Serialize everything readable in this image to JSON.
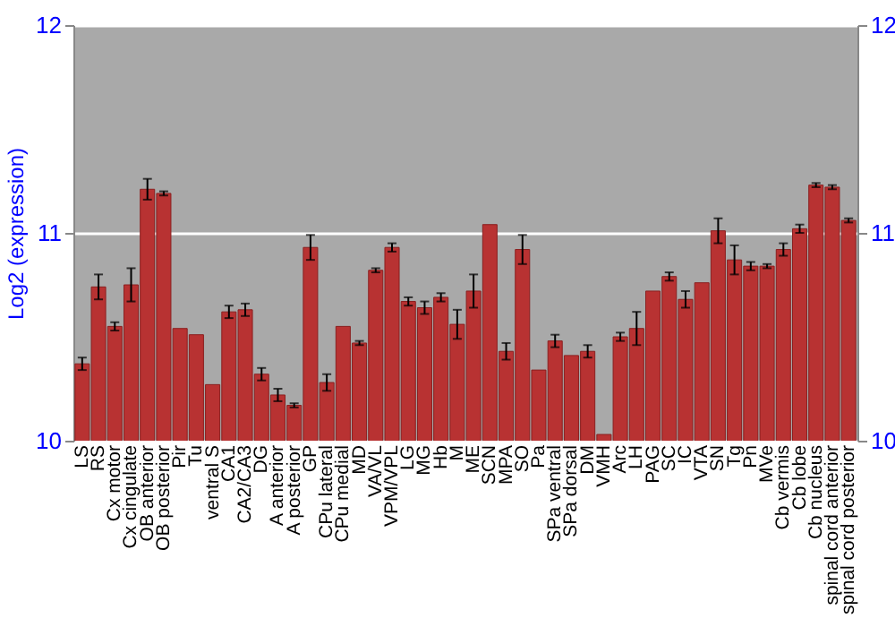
{
  "chart_data": {
    "type": "bar",
    "ylabel": "Log2 (expression)",
    "categories": [
      "LS",
      "RS",
      "Cx motor",
      "Cx cingulate",
      "OB anterior",
      "OB posterior",
      "Pir",
      "Tu",
      "ventral S",
      "CA1",
      "CA2/CA3",
      "DG",
      "A anterior",
      "A posterior",
      "GP",
      "CPu lateral",
      "CPu medial",
      "MD",
      "VA/VL",
      "VPM/VPL",
      "LG",
      "MG",
      "Hb",
      "M",
      "ME",
      "SCN",
      "MPA",
      "SO",
      "Pa",
      "SPa ventral",
      "SPa dorsal",
      "DM",
      "VMH",
      "Arc",
      "LH",
      "PAG",
      "SC",
      "IC",
      "VTA",
      "SN",
      "Tg",
      "Pn",
      "MVe",
      "Cb vermis",
      "Cb lobe",
      "Cb nucleus",
      "spinal cord anterior",
      "spinal cord posterior"
    ],
    "values": [
      10.37,
      10.74,
      10.55,
      10.75,
      11.21,
      11.19,
      10.54,
      10.51,
      10.27,
      10.62,
      10.63,
      10.32,
      10.22,
      10.17,
      10.93,
      10.28,
      10.55,
      10.47,
      10.82,
      10.93,
      10.67,
      10.64,
      10.69,
      10.56,
      10.72,
      11.04,
      10.43,
      10.92,
      10.34,
      10.48,
      10.41,
      10.43,
      10.03,
      10.5,
      10.54,
      10.72,
      10.79,
      10.68,
      10.76,
      11.01,
      10.87,
      10.84,
      10.84,
      10.92,
      11.02,
      11.23,
      11.22,
      11.06
    ],
    "errors": [
      0.03,
      0.06,
      0.02,
      0.08,
      0.05,
      0.01,
      null,
      null,
      null,
      0.03,
      0.03,
      0.03,
      0.03,
      0.01,
      0.06,
      0.04,
      null,
      0.01,
      0.01,
      0.02,
      0.02,
      0.03,
      0.02,
      0.07,
      0.08,
      null,
      0.04,
      0.07,
      null,
      0.03,
      null,
      0.03,
      null,
      0.02,
      0.08,
      null,
      0.02,
      0.04,
      null,
      0.06,
      0.07,
      0.02,
      0.01,
      0.03,
      0.02,
      0.01,
      0.01,
      0.01
    ],
    "color": "#b83232",
    "ylim": [
      10,
      12
    ],
    "yticks": [
      10,
      11,
      12
    ],
    "y2lim": [
      10,
      12
    ],
    "y2ticks": [
      10,
      11,
      12
    ],
    "grid": "y"
  }
}
